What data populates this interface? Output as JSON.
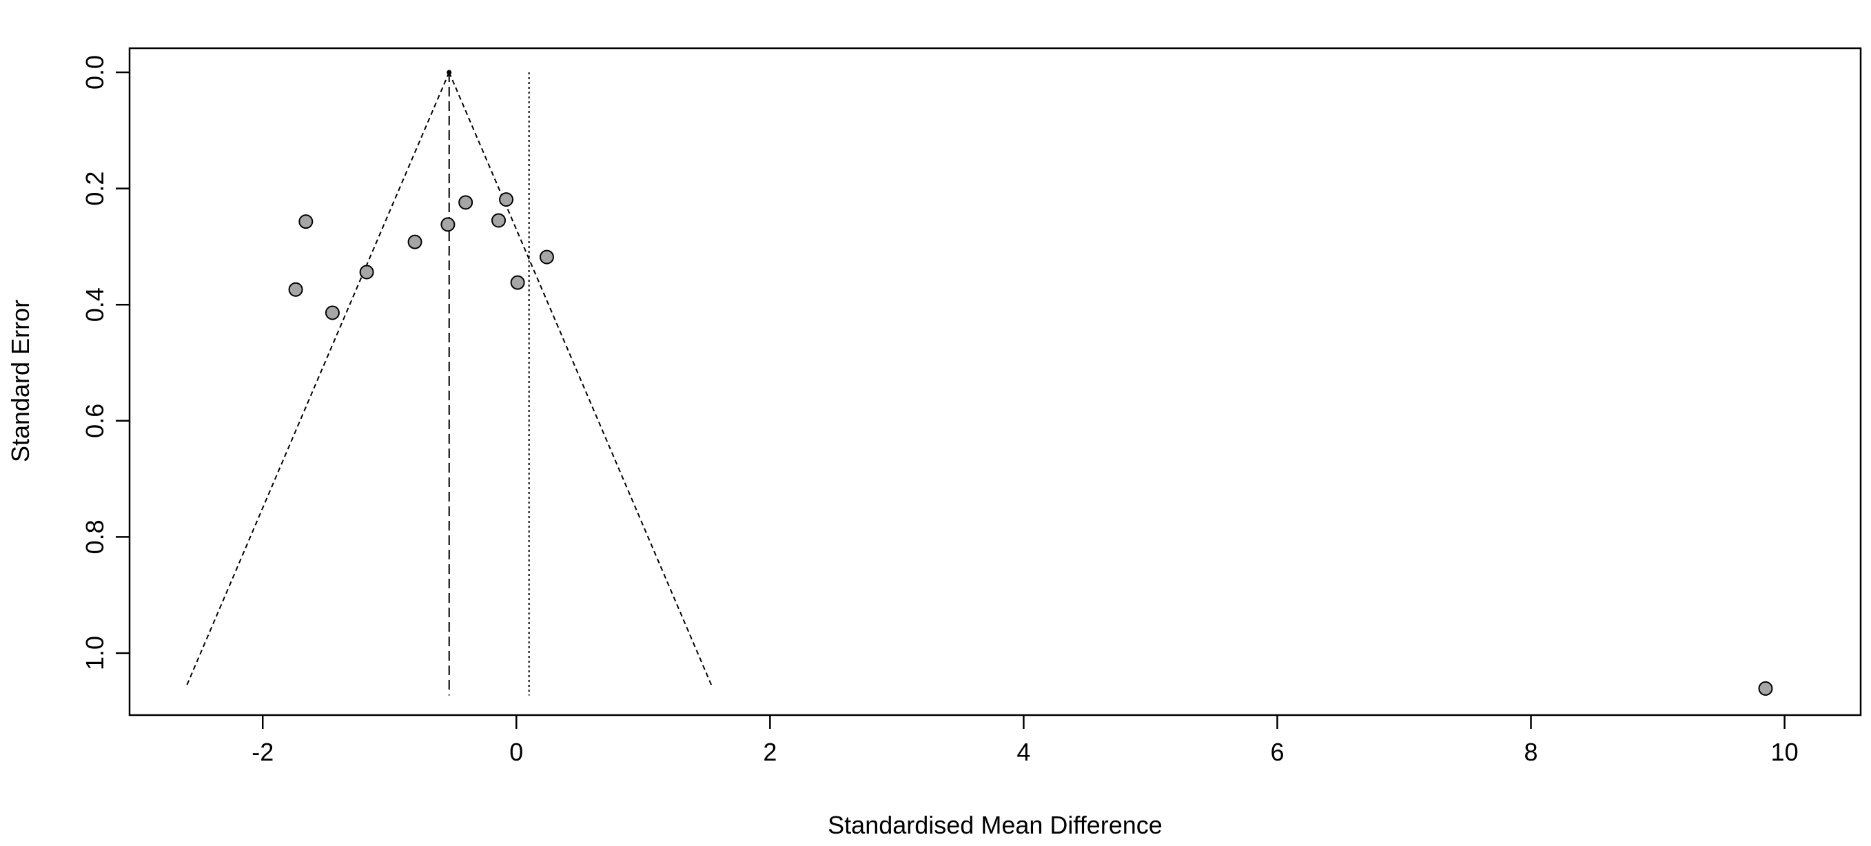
{
  "chart_data": {
    "type": "scatter",
    "title": "",
    "xlabel": "Standardised Mean Difference",
    "ylabel": "Standard Error",
    "xlim": [
      -3.05,
      10.6
    ],
    "ylim": [
      0.0,
      1.1
    ],
    "y_reversed": true,
    "x_ticks": [
      -2,
      0,
      2,
      4,
      6,
      8,
      10
    ],
    "x_tick_labels": [
      "-2",
      "0",
      "2",
      "4",
      "6",
      "8",
      "10"
    ],
    "y_ticks": [
      0.0,
      0.2,
      0.4,
      0.6,
      0.8,
      1.0
    ],
    "y_tick_labels": [
      "0.0",
      "0.2",
      "0.4",
      "0.6",
      "0.8",
      "1.0"
    ],
    "grid": false,
    "points": [
      {
        "x": -1.66,
        "y": 0.257
      },
      {
        "x": -1.74,
        "y": 0.374
      },
      {
        "x": -1.45,
        "y": 0.414
      },
      {
        "x": -1.18,
        "y": 0.344
      },
      {
        "x": -0.8,
        "y": 0.292
      },
      {
        "x": -0.54,
        "y": 0.262
      },
      {
        "x": -0.4,
        "y": 0.224
      },
      {
        "x": -0.14,
        "y": 0.255
      },
      {
        "x": -0.08,
        "y": 0.219
      },
      {
        "x": 0.01,
        "y": 0.362
      },
      {
        "x": 0.24,
        "y": 0.318
      },
      {
        "x": 9.85,
        "y": 1.061
      }
    ],
    "summary_estimate": -0.53,
    "null_line": 0.1,
    "funnel_se_max": 1.055,
    "funnel_z": 1.96,
    "colors": {
      "point_fill": "#a6a6a6",
      "point_stroke": "#000000",
      "line": "#000000"
    }
  }
}
